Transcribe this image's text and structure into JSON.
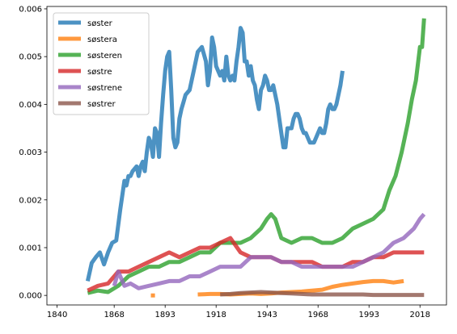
{
  "chart_data": {
    "type": "line",
    "title": "",
    "xlabel": "",
    "ylabel": "",
    "xlim": [
      1835,
      2031
    ],
    "ylim": [
      -0.0002,
      0.00605
    ],
    "xticks": [
      1840,
      1868,
      1893,
      1918,
      1943,
      1968,
      1993,
      2018
    ],
    "xtick_labels": [
      "1840",
      "1868",
      "1893",
      "1918",
      "1943",
      "1968",
      "1993",
      "2018"
    ],
    "yticks": [
      0,
      0.001,
      0.002,
      0.003,
      0.004,
      0.005,
      0.006
    ],
    "ytick_labels": [
      "0.000",
      "0.001",
      "0.002",
      "0.003",
      "0.004",
      "0.005",
      "0.006"
    ],
    "grid": false,
    "legend_position": "top-left",
    "series": [
      {
        "name": "søster",
        "color": "#1f77b4",
        "points": [
          [
            1855,
            0.0003
          ],
          [
            1857,
            0.00068
          ],
          [
            1859,
            0.0008
          ],
          [
            1861,
            0.0009
          ],
          [
            1863,
            0.00065
          ],
          [
            1865,
            0.0009
          ],
          [
            1867,
            0.0011
          ],
          [
            1869,
            0.00115
          ],
          [
            1871,
            0.0018
          ],
          [
            1873,
            0.0024
          ],
          [
            1874,
            0.0023
          ],
          [
            1875,
            0.0025
          ],
          [
            1876,
            0.0025
          ],
          [
            1877,
            0.0026
          ],
          [
            1879,
            0.0027
          ],
          [
            1880,
            0.0025
          ],
          [
            1881,
            0.0027
          ],
          [
            1882,
            0.0028
          ],
          [
            1883,
            0.0026
          ],
          [
            1884,
            0.003
          ],
          [
            1885,
            0.0033
          ],
          [
            1886,
            0.0032
          ],
          [
            1887,
            0.0029
          ],
          [
            1888,
            0.0035
          ],
          [
            1889,
            0.0034
          ],
          [
            1890,
            0.0029
          ],
          [
            1891,
            0.0036
          ],
          [
            1892,
            0.0042
          ],
          [
            1893,
            0.0047
          ],
          [
            1894,
            0.005
          ],
          [
            1895,
            0.0051
          ],
          [
            1896,
            0.0043
          ],
          [
            1897,
            0.0033
          ],
          [
            1898,
            0.0031
          ],
          [
            1899,
            0.0032
          ],
          [
            1900,
            0.0037
          ],
          [
            1901,
            0.0039
          ],
          [
            1902,
            0.00405
          ],
          [
            1903,
            0.0042
          ],
          [
            1905,
            0.0043
          ],
          [
            1907,
            0.0047
          ],
          [
            1909,
            0.0051
          ],
          [
            1911,
            0.0052
          ],
          [
            1913,
            0.0049
          ],
          [
            1914,
            0.0044
          ],
          [
            1915,
            0.0047
          ],
          [
            1916,
            0.0054
          ],
          [
            1917,
            0.0052
          ],
          [
            1918,
            0.0048
          ],
          [
            1919,
            0.0047
          ],
          [
            1920,
            0.0046
          ],
          [
            1921,
            0.0047
          ],
          [
            1922,
            0.0045
          ],
          [
            1923,
            0.005
          ],
          [
            1924,
            0.0046
          ],
          [
            1925,
            0.0045
          ],
          [
            1926,
            0.0046
          ],
          [
            1927,
            0.0045
          ],
          [
            1928,
            0.0049
          ],
          [
            1929,
            0.0052
          ],
          [
            1930,
            0.0056
          ],
          [
            1931,
            0.0055
          ],
          [
            1932,
            0.0049
          ],
          [
            1933,
            0.0049
          ],
          [
            1934,
            0.0046
          ],
          [
            1935,
            0.0048
          ],
          [
            1936,
            0.0045
          ],
          [
            1937,
            0.0044
          ],
          [
            1938,
            0.0041
          ],
          [
            1939,
            0.0039
          ],
          [
            1940,
            0.0043
          ],
          [
            1941,
            0.0044
          ],
          [
            1942,
            0.0046
          ],
          [
            1943,
            0.0045
          ],
          [
            1944,
            0.0043
          ],
          [
            1945,
            0.0043
          ],
          [
            1946,
            0.0044
          ],
          [
            1947,
            0.0042
          ],
          [
            1948,
            0.004
          ],
          [
            1949,
            0.0037
          ],
          [
            1950,
            0.0034
          ],
          [
            1951,
            0.0031
          ],
          [
            1952,
            0.0031
          ],
          [
            1953,
            0.0035
          ],
          [
            1954,
            0.0035
          ],
          [
            1955,
            0.0035
          ],
          [
            1956,
            0.0037
          ],
          [
            1957,
            0.0038
          ],
          [
            1958,
            0.0038
          ],
          [
            1959,
            0.0037
          ],
          [
            1960,
            0.0035
          ],
          [
            1961,
            0.0034
          ],
          [
            1962,
            0.0034
          ],
          [
            1963,
            0.0033
          ],
          [
            1964,
            0.0032
          ],
          [
            1965,
            0.0032
          ],
          [
            1966,
            0.0032
          ],
          [
            1967,
            0.0033
          ],
          [
            1968,
            0.0034
          ],
          [
            1969,
            0.0035
          ],
          [
            1970,
            0.0034
          ],
          [
            1971,
            0.0034
          ],
          [
            1972,
            0.0036
          ],
          [
            1973,
            0.0039
          ],
          [
            1974,
            0.004
          ],
          [
            1975,
            0.0039
          ],
          [
            1976,
            0.0039
          ],
          [
            1977,
            0.004
          ],
          [
            1978,
            0.0042
          ],
          [
            1979,
            0.0044
          ],
          [
            1980,
            0.0047
          ]
        ]
      },
      {
        "name": "søstera",
        "color": "#ff7f0e",
        "points": [
          [
            1886,
            0.0
          ],
          [
            1888,
            0.0
          ],
          [
            1909,
            2e-05
          ],
          [
            1915,
            3e-05
          ],
          [
            1920,
            3e-05
          ],
          [
            1925,
            2e-05
          ],
          [
            1930,
            3e-05
          ],
          [
            1935,
            4e-05
          ],
          [
            1940,
            3e-05
          ],
          [
            1945,
            4e-05
          ],
          [
            1950,
            6e-05
          ],
          [
            1955,
            7e-05
          ],
          [
            1960,
            8e-05
          ],
          [
            1965,
            0.0001
          ],
          [
            1970,
            0.00012
          ],
          [
            1975,
            0.00018
          ],
          [
            1980,
            0.00022
          ],
          [
            1985,
            0.00025
          ],
          [
            1990,
            0.00028
          ],
          [
            1995,
            0.0003
          ],
          [
            2000,
            0.0003
          ],
          [
            2005,
            0.00027
          ],
          [
            2010,
            0.0003
          ]
        ]
      },
      {
        "name": "søsteren",
        "color": "#2ca02c",
        "points": [
          [
            1855,
            5e-05
          ],
          [
            1860,
            0.0001
          ],
          [
            1865,
            7e-05
          ],
          [
            1870,
            0.0002
          ],
          [
            1875,
            0.0004
          ],
          [
            1880,
            0.0005
          ],
          [
            1885,
            0.0006
          ],
          [
            1890,
            0.0006
          ],
          [
            1895,
            0.0007
          ],
          [
            1900,
            0.0007
          ],
          [
            1905,
            0.0008
          ],
          [
            1910,
            0.0009
          ],
          [
            1915,
            0.0009
          ],
          [
            1920,
            0.0011
          ],
          [
            1925,
            0.0011
          ],
          [
            1930,
            0.0011
          ],
          [
            1935,
            0.0012
          ],
          [
            1940,
            0.0014
          ],
          [
            1943,
            0.0016
          ],
          [
            1945,
            0.0017
          ],
          [
            1947,
            0.0016
          ],
          [
            1950,
            0.0012
          ],
          [
            1955,
            0.0011
          ],
          [
            1960,
            0.0012
          ],
          [
            1965,
            0.0012
          ],
          [
            1970,
            0.0011
          ],
          [
            1975,
            0.0011
          ],
          [
            1980,
            0.0012
          ],
          [
            1985,
            0.0014
          ],
          [
            1990,
            0.0015
          ],
          [
            1995,
            0.0016
          ],
          [
            2000,
            0.0018
          ],
          [
            2003,
            0.0022
          ],
          [
            2006,
            0.0025
          ],
          [
            2009,
            0.003
          ],
          [
            2012,
            0.0036
          ],
          [
            2014,
            0.0041
          ],
          [
            2016,
            0.0045
          ],
          [
            2018,
            0.0052
          ],
          [
            2019,
            0.0052
          ],
          [
            2020,
            0.0058
          ]
        ]
      },
      {
        "name": "søstre",
        "color": "#d62728",
        "points": [
          [
            1855,
            0.0001
          ],
          [
            1860,
            0.0002
          ],
          [
            1865,
            0.00025
          ],
          [
            1870,
            0.0005
          ],
          [
            1875,
            0.0005
          ],
          [
            1880,
            0.0006
          ],
          [
            1885,
            0.0007
          ],
          [
            1890,
            0.0008
          ],
          [
            1895,
            0.0009
          ],
          [
            1900,
            0.0008
          ],
          [
            1905,
            0.0009
          ],
          [
            1910,
            0.001
          ],
          [
            1915,
            0.001
          ],
          [
            1920,
            0.0011
          ],
          [
            1925,
            0.0012
          ],
          [
            1930,
            0.0009
          ],
          [
            1935,
            0.0008
          ],
          [
            1940,
            0.0008
          ],
          [
            1945,
            0.0008
          ],
          [
            1950,
            0.0007
          ],
          [
            1955,
            0.0007
          ],
          [
            1960,
            0.0007
          ],
          [
            1965,
            0.0007
          ],
          [
            1970,
            0.0006
          ],
          [
            1975,
            0.0006
          ],
          [
            1980,
            0.0006
          ],
          [
            1985,
            0.0007
          ],
          [
            1990,
            0.0007
          ],
          [
            1995,
            0.0008
          ],
          [
            2000,
            0.0008
          ],
          [
            2005,
            0.0009
          ],
          [
            2010,
            0.0009
          ],
          [
            2015,
            0.0009
          ],
          [
            2020,
            0.0009
          ]
        ]
      },
      {
        "name": "søstrene",
        "color": "#9467bd",
        "points": [
          [
            1868,
            0.0002
          ],
          [
            1870,
            0.0005
          ],
          [
            1873,
            0.0002
          ],
          [
            1876,
            0.00025
          ],
          [
            1880,
            0.00015
          ],
          [
            1885,
            0.0002
          ],
          [
            1890,
            0.00025
          ],
          [
            1895,
            0.0003
          ],
          [
            1900,
            0.0003
          ],
          [
            1905,
            0.0004
          ],
          [
            1910,
            0.0004
          ],
          [
            1915,
            0.0005
          ],
          [
            1920,
            0.0006
          ],
          [
            1925,
            0.0006
          ],
          [
            1930,
            0.0006
          ],
          [
            1935,
            0.0008
          ],
          [
            1940,
            0.0008
          ],
          [
            1945,
            0.0008
          ],
          [
            1950,
            0.0007
          ],
          [
            1955,
            0.0007
          ],
          [
            1960,
            0.0006
          ],
          [
            1965,
            0.0006
          ],
          [
            1970,
            0.0006
          ],
          [
            1975,
            0.0006
          ],
          [
            1980,
            0.0006
          ],
          [
            1985,
            0.0006
          ],
          [
            1990,
            0.0007
          ],
          [
            1995,
            0.0008
          ],
          [
            2000,
            0.0009
          ],
          [
            2005,
            0.0011
          ],
          [
            2010,
            0.0012
          ],
          [
            2015,
            0.0014
          ],
          [
            2018,
            0.0016
          ],
          [
            2020,
            0.0017
          ]
        ]
      },
      {
        "name": "søstrer",
        "color": "#8c564b",
        "points": [
          [
            1920,
            2e-05
          ],
          [
            1925,
            3e-05
          ],
          [
            1930,
            5e-05
          ],
          [
            1935,
            6e-05
          ],
          [
            1940,
            7e-05
          ],
          [
            1945,
            6e-05
          ],
          [
            1950,
            5e-05
          ],
          [
            1955,
            4e-05
          ],
          [
            1960,
            3e-05
          ],
          [
            1965,
            2e-05
          ],
          [
            1970,
            2e-05
          ],
          [
            1975,
            2e-05
          ],
          [
            1980,
            2e-05
          ],
          [
            1985,
            2e-05
          ],
          [
            1990,
            2e-05
          ],
          [
            1995,
            1e-05
          ],
          [
            2000,
            1e-05
          ],
          [
            2005,
            1e-05
          ],
          [
            2010,
            1e-05
          ],
          [
            2015,
            1e-05
          ],
          [
            2020,
            1e-05
          ]
        ]
      }
    ]
  }
}
